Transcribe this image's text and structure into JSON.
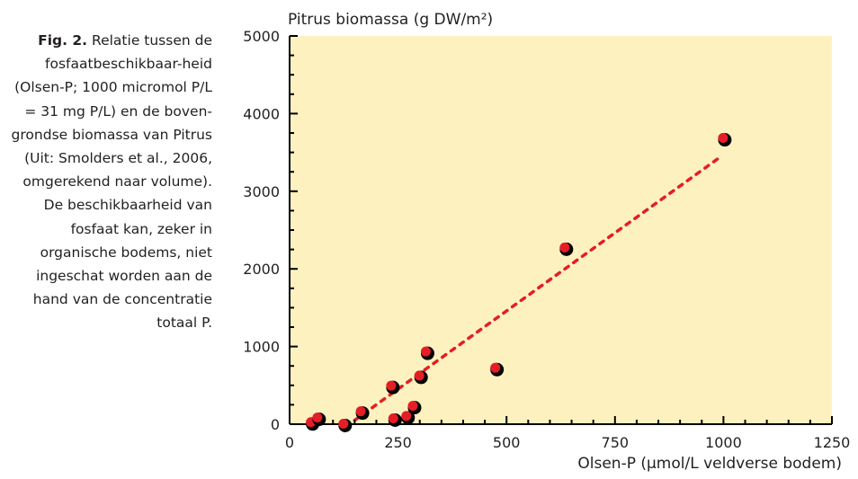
{
  "caption": {
    "fig_label": "Fig. 2.",
    "text": "Relatie tussen de fosfaatbeschikbaar-heid (Olsen-P; 1000 micromol P/L = 31 mg P/L) en de boven-grondse biomassa van Pitrus (Uit: Smolders et al., 2006, omgerekend naar volume). De beschikbaarheid van fosfaat kan, zeker in organische bodems, niet ingeschat worden aan de hand van de concentratie totaal P."
  },
  "chart_data": {
    "type": "scatter",
    "ylabel": "Pitrus biomassa (g DW/m²)",
    "xlabel": "Olsen-P (μmol/L veldverse bodem)",
    "xlim": [
      0,
      1250
    ],
    "ylim": [
      0,
      5000
    ],
    "x_ticks": [
      "0",
      "250",
      "500",
      "750",
      "1000",
      "1250"
    ],
    "y_ticks": [
      "0",
      "1000",
      "2000",
      "3000",
      "4000",
      "5000"
    ],
    "points": [
      {
        "x": 50,
        "y": 20
      },
      {
        "x": 65,
        "y": 80
      },
      {
        "x": 125,
        "y": 0
      },
      {
        "x": 165,
        "y": 160
      },
      {
        "x": 235,
        "y": 490
      },
      {
        "x": 240,
        "y": 70
      },
      {
        "x": 270,
        "y": 100
      },
      {
        "x": 285,
        "y": 230
      },
      {
        "x": 300,
        "y": 620
      },
      {
        "x": 315,
        "y": 930
      },
      {
        "x": 475,
        "y": 720
      },
      {
        "x": 635,
        "y": 2270
      },
      {
        "x": 1000,
        "y": 3680
      }
    ],
    "trendline": {
      "x": [
        150,
        990
      ],
      "y": [
        50,
        3430
      ]
    },
    "colors": {
      "background": "#fdf2bf",
      "point": "#e41e26",
      "trendline": "#e41e26"
    }
  }
}
